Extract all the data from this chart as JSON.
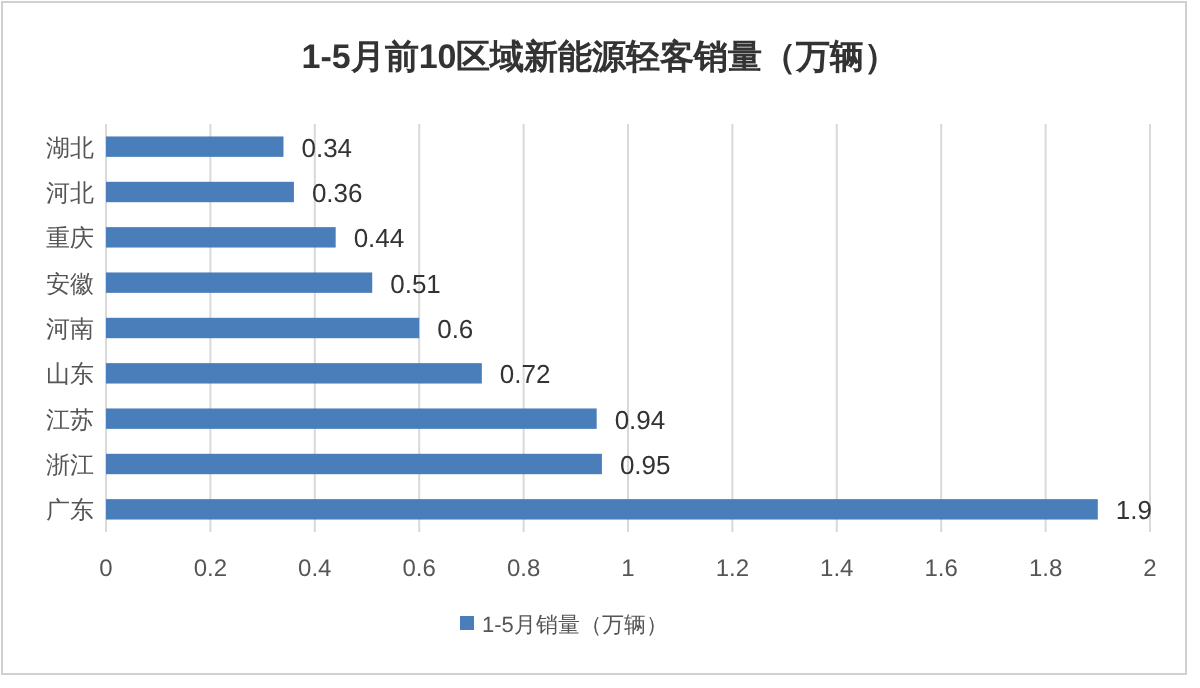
{
  "chart_data": {
    "type": "bar",
    "orientation": "horizontal",
    "title": "1-5月前10区域新能源轻客销量（万辆）",
    "categories": [
      "湖北",
      "河北",
      "重庆",
      "安徽",
      "河南",
      "山东",
      "江苏",
      "浙江",
      "广东"
    ],
    "series": [
      {
        "name": "1-5月销量（万辆）",
        "color": "#4a7ebb",
        "values": [
          0.34,
          0.36,
          0.44,
          0.51,
          0.6,
          0.72,
          0.94,
          0.95,
          1.9
        ]
      }
    ],
    "xlim": [
      0,
      2
    ],
    "xticks": [
      0,
      0.2,
      0.4,
      0.6,
      0.8,
      1,
      1.2,
      1.4,
      1.6,
      1.8,
      2
    ],
    "grid": "x",
    "data_labels": true,
    "legend": "bottom"
  }
}
